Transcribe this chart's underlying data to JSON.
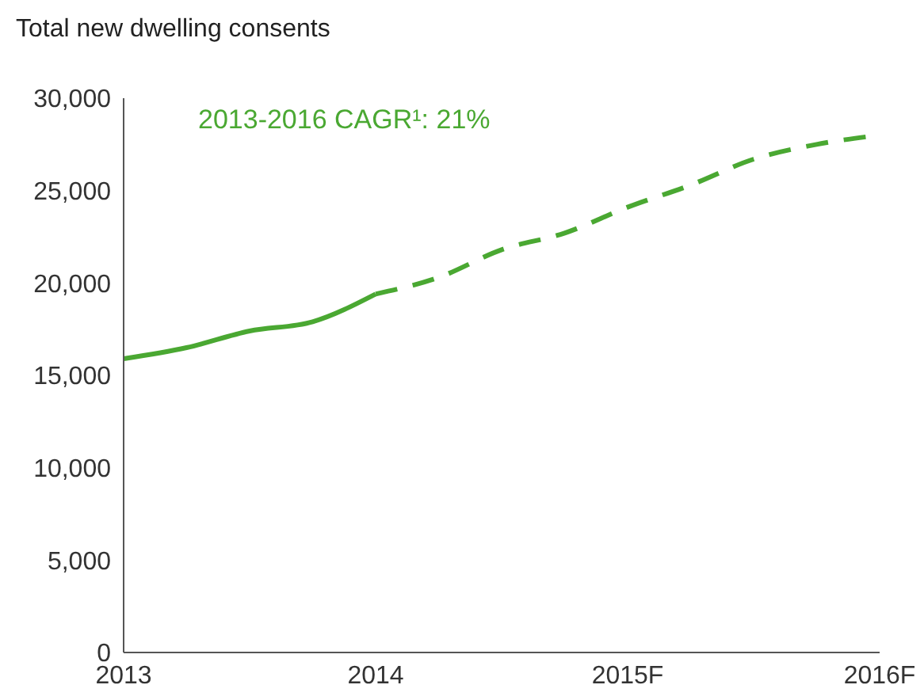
{
  "chart_data": {
    "type": "line",
    "title": "Total new dwelling consents",
    "annotations": [
      "2013-2016 CAGR¹: 21%"
    ],
    "categories": [
      "2013",
      null,
      null,
      null,
      "2014",
      null,
      null,
      null,
      "2015F",
      null,
      null,
      null,
      "2016F"
    ],
    "ylim": [
      0,
      30000
    ],
    "yticks": [
      0,
      {
        "value": 5000,
        "label": "5,000"
      },
      {
        "value": 10000,
        "label": "10,000"
      },
      {
        "value": 15000,
        "label": "15,000"
      },
      {
        "value": 20000,
        "label": "20,000"
      },
      {
        "value": 25000,
        "label": "25,000"
      },
      {
        "value": 30000,
        "label": "30,000"
      }
    ],
    "series": [
      {
        "color": "#4aa832",
        "line_style": "solid",
        "values": [
          15900,
          16500,
          17400,
          17900,
          19400,
          null,
          null,
          null,
          null,
          null,
          null,
          null,
          null
        ]
      },
      {
        "color": "#4aa832",
        "line_style": "dashed",
        "values": [
          null,
          null,
          null,
          null,
          19400,
          20300,
          21800,
          22700,
          24100,
          25300,
          26700,
          27500,
          28000
        ]
      }
    ],
    "grid": false,
    "legend": false,
    "marker": "none"
  }
}
